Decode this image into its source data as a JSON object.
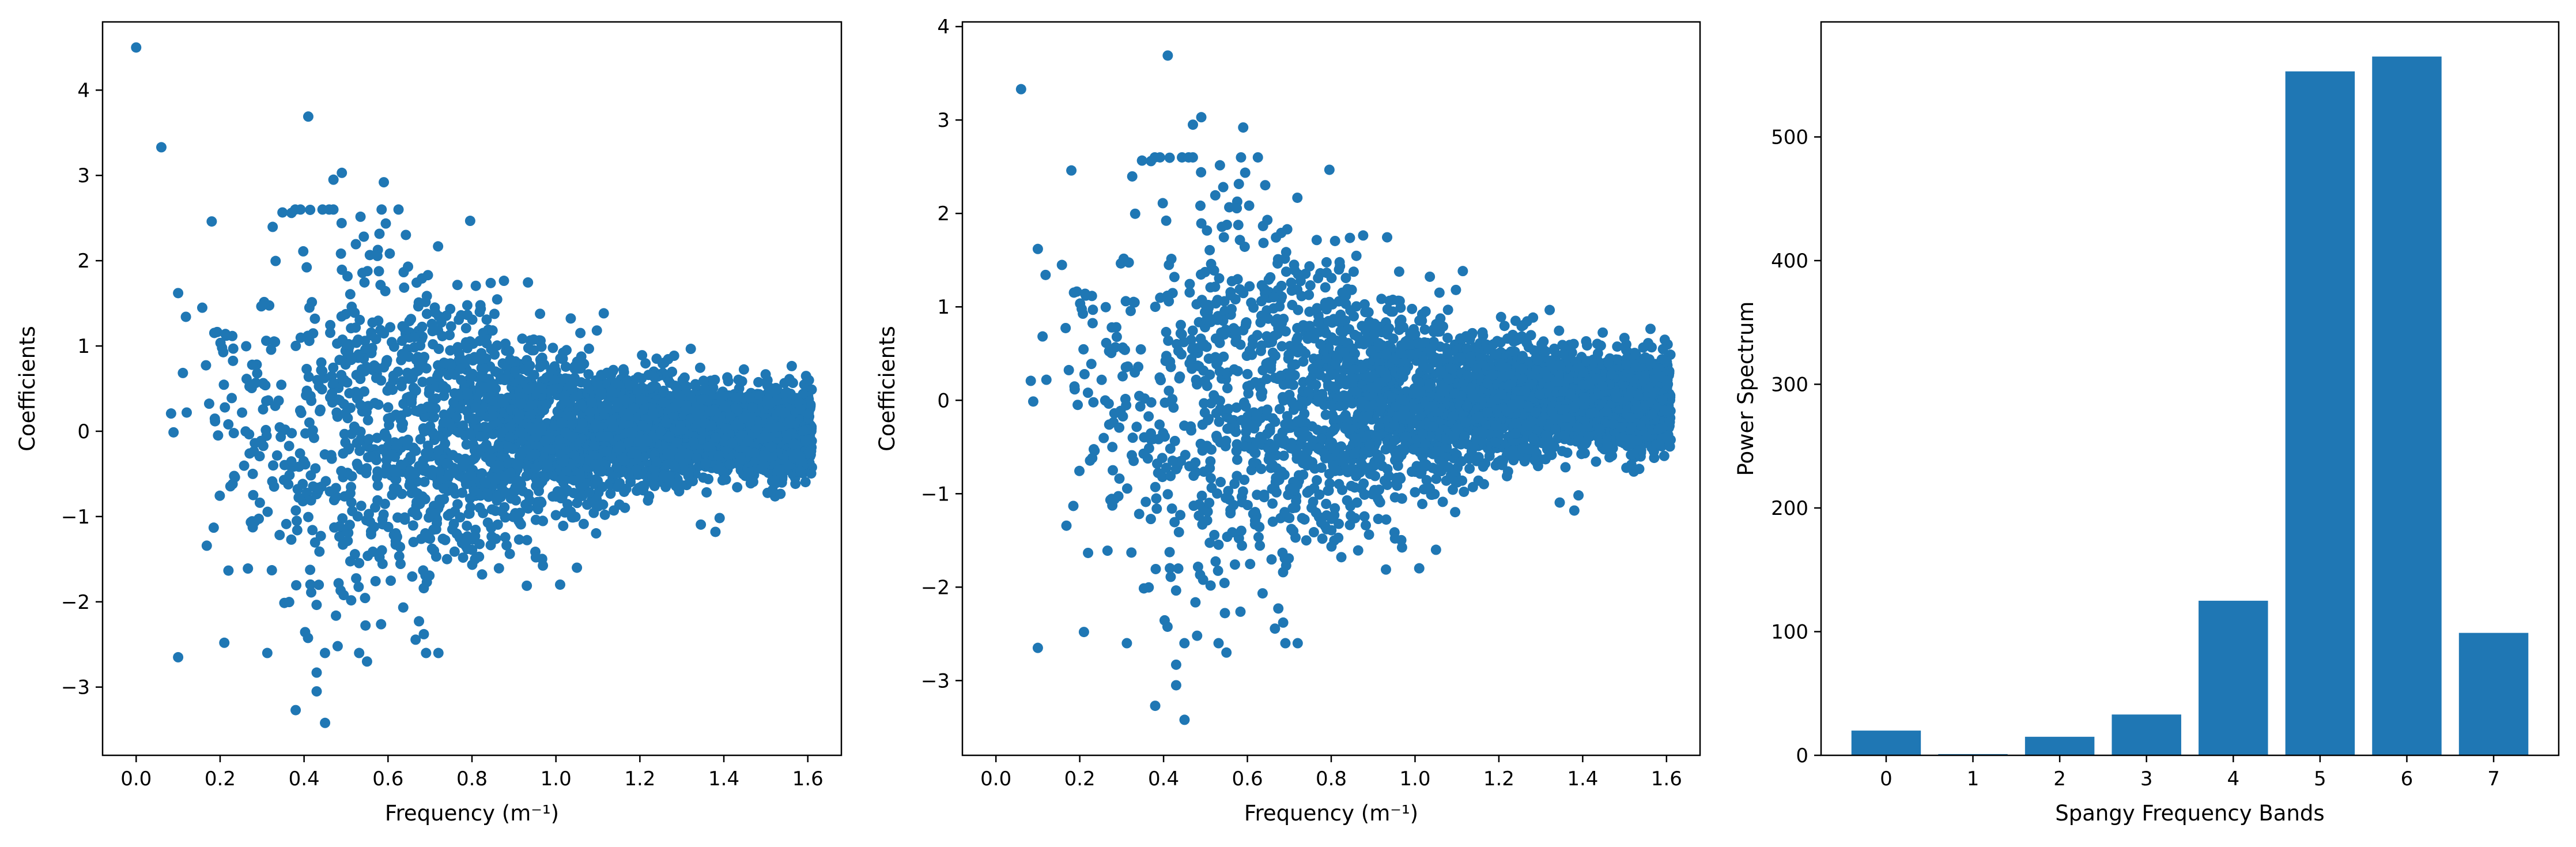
{
  "figure": {
    "background": "#ffffff",
    "mark_color": "#1f77b4"
  },
  "chart_data": [
    {
      "type": "scatter",
      "title": "",
      "xlabel": "Frequency (m⁻¹)",
      "ylabel": "Coefficients",
      "xlim": [
        -0.08,
        1.68
      ],
      "ylim": [
        -3.8,
        4.8
      ],
      "xticks": [
        "0.0",
        "0.2",
        "0.4",
        "0.6",
        "0.8",
        "1.0",
        "1.2",
        "1.4",
        "1.6"
      ],
      "yticks": [
        "−3",
        "−2",
        "−1",
        "0",
        "1",
        "2",
        "3",
        "4"
      ],
      "grid": false,
      "legend": "none",
      "n_points": 4000,
      "x_range": [
        0.0,
        1.61
      ],
      "envelope_note": "coefficients spread widest at low frequency (about ±3.4) and narrow to about ±0.7 near 1.6",
      "notable_points": [
        {
          "x": 0.0,
          "y": 4.5
        },
        {
          "x": 0.06,
          "y": 3.33
        },
        {
          "x": 0.41,
          "y": 3.69
        },
        {
          "x": 0.49,
          "y": 3.03
        },
        {
          "x": 0.47,
          "y": 2.95
        },
        {
          "x": 0.59,
          "y": 2.92
        },
        {
          "x": 0.18,
          "y": 2.46
        },
        {
          "x": 0.37,
          "y": 2.56
        },
        {
          "x": 0.1,
          "y": 1.62
        },
        {
          "x": 0.1,
          "y": -2.65
        },
        {
          "x": 0.21,
          "y": -2.48
        },
        {
          "x": 0.38,
          "y": -3.27
        },
        {
          "x": 0.45,
          "y": -3.42
        },
        {
          "x": 0.43,
          "y": -3.05
        },
        {
          "x": 0.43,
          "y": -2.83
        },
        {
          "x": 0.48,
          "y": -2.52
        },
        {
          "x": 0.55,
          "y": -2.7
        },
        {
          "x": 0.72,
          "y": -2.6
        },
        {
          "x": 1.05,
          "y": -1.6
        },
        {
          "x": 1.38,
          "y": -1.18
        }
      ]
    },
    {
      "type": "scatter",
      "title": "",
      "xlabel": "Frequency (m⁻¹)",
      "ylabel": "Coefficients",
      "xlim": [
        -0.08,
        1.68
      ],
      "ylim": [
        -3.8,
        4.05
      ],
      "xticks": [
        "0.0",
        "0.2",
        "0.4",
        "0.6",
        "0.8",
        "1.0",
        "1.2",
        "1.4",
        "1.6"
      ],
      "yticks": [
        "−3",
        "−2",
        "−1",
        "0",
        "1",
        "2",
        "3",
        "4"
      ],
      "grid": false,
      "legend": "none",
      "n_points": 4000,
      "x_range": [
        0.0,
        1.61
      ],
      "envelope_note": "same distribution as the left panel without the x=0 point",
      "notable_points": [
        {
          "x": 0.06,
          "y": 3.33
        },
        {
          "x": 0.41,
          "y": 3.69
        },
        {
          "x": 0.49,
          "y": 3.03
        },
        {
          "x": 0.47,
          "y": 2.95
        },
        {
          "x": 0.59,
          "y": 2.92
        },
        {
          "x": 0.18,
          "y": 2.46
        },
        {
          "x": 0.37,
          "y": 2.56
        },
        {
          "x": 0.1,
          "y": 1.62
        },
        {
          "x": 0.1,
          "y": -2.65
        },
        {
          "x": 0.21,
          "y": -2.48
        },
        {
          "x": 0.38,
          "y": -3.27
        },
        {
          "x": 0.45,
          "y": -3.42
        },
        {
          "x": 0.43,
          "y": -3.05
        },
        {
          "x": 0.43,
          "y": -2.83
        },
        {
          "x": 0.48,
          "y": -2.52
        },
        {
          "x": 0.55,
          "y": -2.7
        },
        {
          "x": 0.72,
          "y": -2.6
        },
        {
          "x": 1.05,
          "y": -1.6
        },
        {
          "x": 1.38,
          "y": -1.18
        }
      ]
    },
    {
      "type": "bar",
      "title": "",
      "xlabel": "Spangy Frequency Bands",
      "ylabel": "Power Spectrum",
      "categories": [
        "0",
        "1",
        "2",
        "3",
        "4",
        "5",
        "6",
        "7"
      ],
      "values": [
        20,
        1,
        15,
        33,
        125,
        553,
        565,
        99
      ],
      "ylim": [
        0,
        593
      ],
      "yticks": [
        0,
        100,
        200,
        300,
        400,
        500
      ],
      "grid": false,
      "legend": "none"
    }
  ]
}
